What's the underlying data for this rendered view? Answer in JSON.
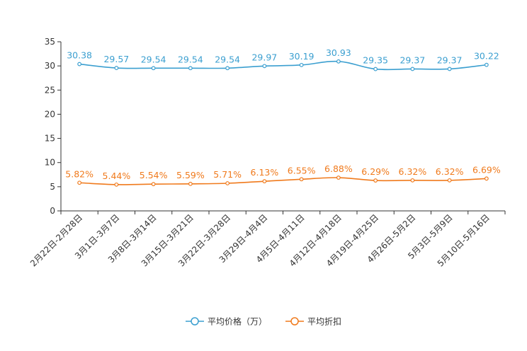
{
  "chart_data": {
    "type": "line",
    "title": "",
    "xlabel": "",
    "ylabel": "",
    "ylim": [
      0,
      35
    ],
    "yticks": [
      0,
      5,
      10,
      15,
      20,
      25,
      30,
      35
    ],
    "grid": false,
    "legend_position": "bottom-center",
    "categories": [
      "2月22日-2月28日",
      "3月1日-3月7日",
      "3月8日-3月14日",
      "3月15日-3月21日",
      "3月22日-3月28日",
      "3月29日-4月4日",
      "4月5日-4月11日",
      "4月12日-4月18日",
      "4月19日-4月25日",
      "4月26日-5月2日",
      "5月3日-5月9日",
      "5月10日-5月16日"
    ],
    "series": [
      {
        "name": "平均价格（万）",
        "color": "#3b9fd0",
        "values": [
          30.38,
          29.57,
          29.54,
          29.54,
          29.54,
          29.97,
          30.19,
          30.93,
          29.35,
          29.37,
          29.37,
          30.22
        ],
        "labels": [
          "30.38",
          "29.57",
          "29.54",
          "29.54",
          "29.54",
          "29.97",
          "30.19",
          "30.93",
          "29.35",
          "29.37",
          "29.37",
          "30.22"
        ]
      },
      {
        "name": "平均折扣",
        "color": "#f07a1c",
        "values": [
          5.82,
          5.44,
          5.54,
          5.59,
          5.71,
          6.13,
          6.55,
          6.88,
          6.29,
          6.32,
          6.32,
          6.69
        ],
        "labels": [
          "5.82%",
          "5.44%",
          "5.54%",
          "5.59%",
          "5.71%",
          "6.13%",
          "6.55%",
          "6.88%",
          "6.29%",
          "6.32%",
          "6.32%",
          "6.69%"
        ]
      }
    ]
  }
}
